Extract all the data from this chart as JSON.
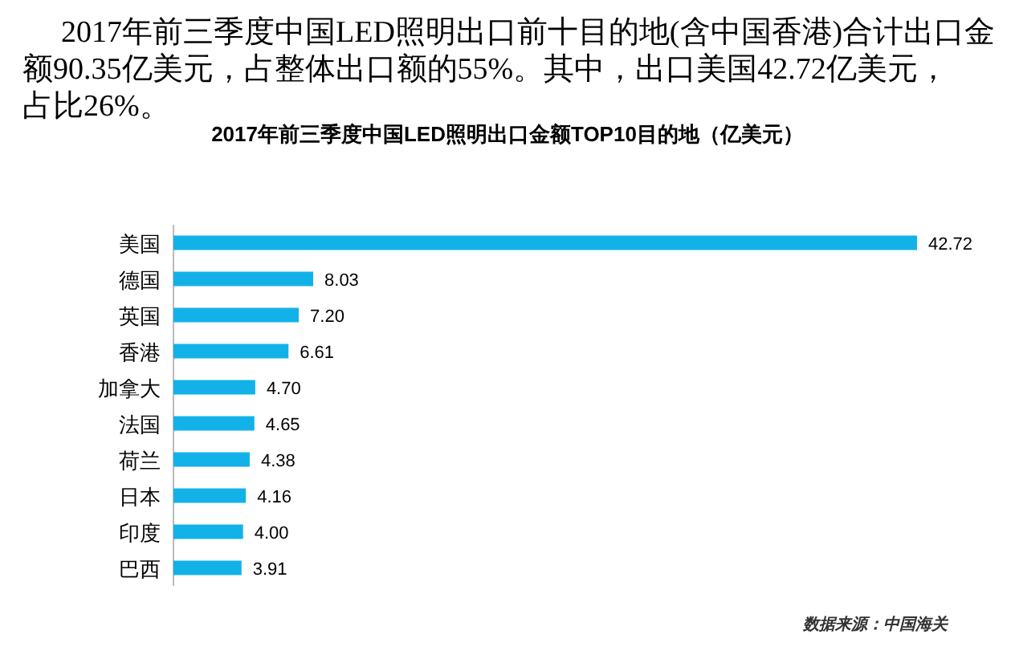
{
  "chart_data": {
    "type": "bar",
    "orientation": "horizontal",
    "title": "2017年前三季度中国LED照明出口金额TOP10目的地（亿美元）",
    "categories": [
      "美国",
      "德国",
      "英国",
      "香港",
      "加拿大",
      "法国",
      "荷兰",
      "日本",
      "印度",
      "巴西"
    ],
    "values": [
      42.72,
      8.03,
      7.2,
      6.61,
      4.7,
      4.65,
      4.38,
      4.16,
      4.0,
      3.91
    ],
    "value_labels": [
      "42.72",
      "8.03",
      "7.20",
      "6.61",
      "4.70",
      "4.65",
      "4.38",
      "4.16",
      "4.00",
      "3.91"
    ],
    "color": "#12b2e8",
    "annotations": [
      "2017年前三季度中国LED照明出口前十目的地(含中国香港)合计出口金额90.35亿美元，占整体出口额的55%。其中，出口美国42.72亿美元，占比26%。",
      "数据来源：中国海关"
    ]
  }
}
